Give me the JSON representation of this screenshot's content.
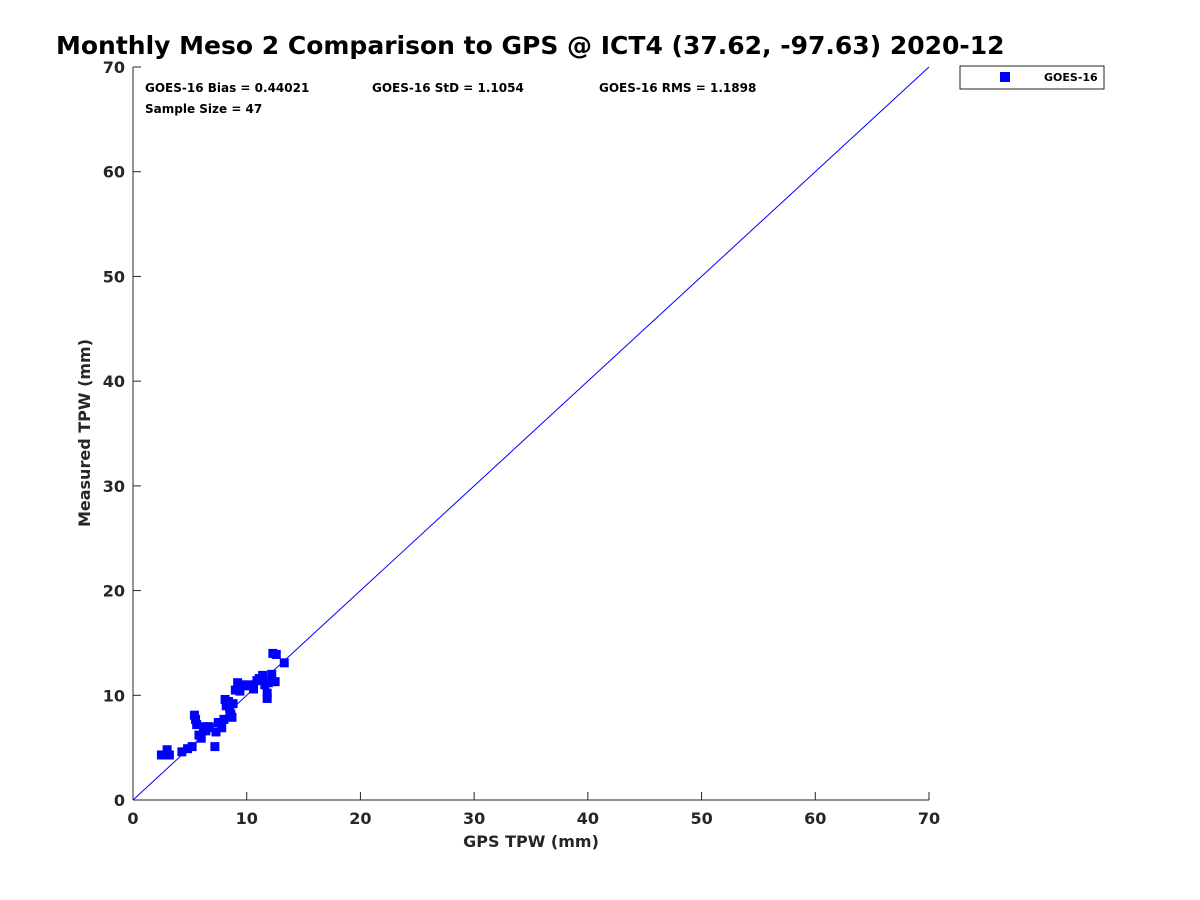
{
  "chart_data": {
    "type": "scatter",
    "title": "Monthly Meso 2 Comparison to GPS @ ICT4 (37.62, -97.63) 2020-12",
    "xlabel": "GPS TPW (mm)",
    "ylabel": "Measured TPW (mm)",
    "xlim": [
      0,
      70
    ],
    "ylim": [
      0,
      70
    ],
    "xticks": [
      0,
      10,
      20,
      30,
      40,
      50,
      60,
      70
    ],
    "yticks": [
      0,
      10,
      20,
      30,
      40,
      50,
      60,
      70
    ],
    "grid": false,
    "legend_position": "outside-top-right",
    "reference_line": {
      "name": "1:1 line",
      "x": [
        0,
        70
      ],
      "y": [
        0,
        70
      ],
      "color": "#0000ff"
    },
    "annotations": {
      "bias": "GOES-16 Bias = 0.44021",
      "std": "GOES-16 StD = 1.1054",
      "rms": "GOES-16 RMS = 1.1898",
      "sample_size": "Sample Size = 47"
    },
    "series": [
      {
        "name": "GOES-16",
        "color": "#0000ff",
        "marker": "square",
        "x": [
          2.5,
          2.8,
          3.0,
          3.2,
          4.3,
          4.8,
          5.2,
          5.4,
          5.5,
          5.6,
          5.8,
          6.0,
          6.2,
          6.4,
          6.5,
          6.7,
          7.2,
          7.3,
          7.5,
          7.8,
          8.0,
          8.1,
          8.2,
          8.4,
          8.5,
          8.6,
          8.7,
          8.8,
          9.0,
          9.2,
          9.4,
          9.6,
          10.0,
          10.3,
          10.6,
          10.9,
          11.1,
          11.4,
          11.6,
          11.8,
          11.8,
          11.9,
          12.2,
          12.3,
          12.5,
          12.6,
          13.3
        ],
        "y": [
          4.3,
          4.3,
          4.8,
          4.3,
          4.6,
          4.9,
          5.1,
          8.1,
          7.7,
          7.2,
          6.2,
          5.9,
          7.0,
          6.6,
          6.9,
          7.0,
          5.1,
          6.5,
          7.4,
          6.9,
          7.7,
          9.6,
          9.0,
          9.4,
          8.7,
          8.2,
          7.9,
          9.2,
          10.5,
          11.2,
          10.4,
          11.0,
          10.9,
          11.0,
          10.6,
          11.4,
          11.6,
          11.9,
          11.0,
          9.7,
          10.2,
          11.2,
          12.0,
          14.0,
          11.3,
          13.9,
          13.1
        ]
      }
    ]
  }
}
